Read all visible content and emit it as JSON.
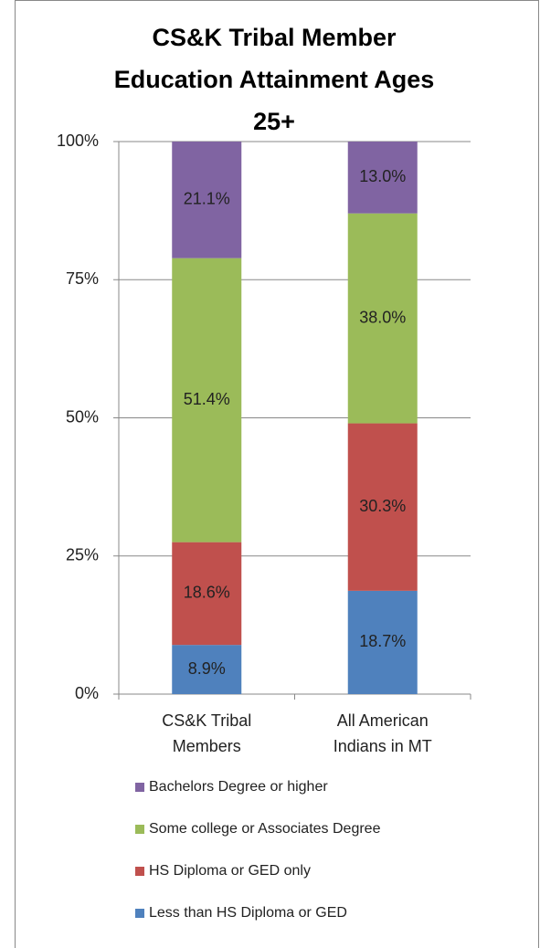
{
  "chart_data": {
    "type": "stacked_bar",
    "title": "CS&K Tribal Member Education Attainment Ages 25+",
    "categories": [
      "CS&K Tribal Members",
      "All American Indians in MT"
    ],
    "series": [
      {
        "name": "Less than HS Diploma or GED",
        "color": "#4f81bd",
        "values": [
          8.9,
          18.7
        ],
        "value_labels": [
          "8.9%",
          "18.7%"
        ]
      },
      {
        "name": "HS Diploma or GED only",
        "color": "#c0504d",
        "values": [
          18.6,
          30.3
        ],
        "value_labels": [
          "18.6%",
          "30.3%"
        ]
      },
      {
        "name": "Some college or Associates Degree",
        "color": "#9bbb59",
        "values": [
          51.4,
          38.0
        ],
        "value_labels": [
          "51.4%",
          "38.0%"
        ]
      },
      {
        "name": "Bachelors Degree or higher",
        "color": "#8064a2",
        "values": [
          21.1,
          13.0
        ],
        "value_labels": [
          "21.1%",
          "13.0%"
        ]
      }
    ],
    "ylim": [
      0,
      100
    ],
    "yticks": [
      {
        "value": 0,
        "label": "0%"
      },
      {
        "value": 25,
        "label": "25%"
      },
      {
        "value": 50,
        "label": "50%"
      },
      {
        "value": 75,
        "label": "75%"
      },
      {
        "value": 100,
        "label": "100%"
      }
    ],
    "grid": true,
    "legend": "bottom"
  }
}
